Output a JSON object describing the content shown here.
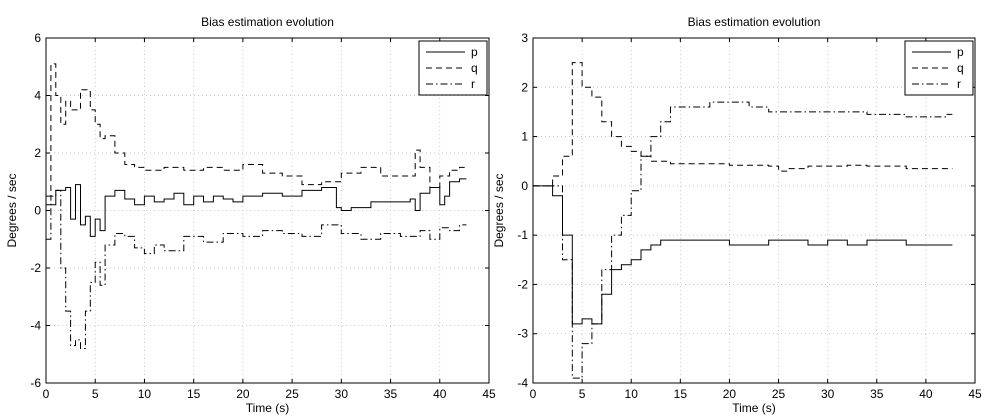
{
  "chart_data": [
    {
      "type": "line",
      "title": "Bias estimation evolution",
      "xlabel": "Time (s)",
      "ylabel": "Degrees / sec",
      "xlim": [
        0,
        45
      ],
      "ylim": [
        -6,
        6
      ],
      "xticks": [
        0,
        5,
        10,
        15,
        20,
        25,
        30,
        35,
        40,
        45
      ],
      "yticks": [
        -6,
        -4,
        -2,
        0,
        2,
        4,
        6
      ],
      "grid": true,
      "legend_position": "top-right",
      "series": [
        {
          "name": "p",
          "style": "solid",
          "x": [
            0,
            1,
            2,
            2.5,
            3,
            3.5,
            4,
            4.5,
            5,
            5.5,
            6,
            7,
            8,
            9,
            10,
            11,
            12,
            13,
            14,
            15,
            16,
            17,
            18,
            19,
            20,
            22,
            24,
            26,
            28,
            29.5,
            30,
            31,
            33,
            35,
            37,
            37.5,
            38,
            39,
            40,
            40.5,
            41,
            42,
            42.7
          ],
          "y": [
            0.2,
            0.7,
            0.8,
            -0.3,
            0.9,
            -0.5,
            -0.2,
            -0.9,
            -0.3,
            -0.7,
            0.5,
            0.7,
            0.4,
            0.2,
            0.5,
            0.3,
            0.4,
            0.6,
            0.2,
            0.5,
            0.3,
            0.5,
            0.4,
            0.3,
            0.5,
            0.6,
            0.5,
            0.7,
            0.8,
            0.1,
            0.0,
            0.1,
            0.3,
            0.3,
            0.4,
            0.0,
            0.6,
            0.8,
            0.2,
            0.5,
            1.0,
            1.1,
            1.1
          ]
        },
        {
          "name": "q",
          "style": "dashed",
          "x": [
            0,
            0.5,
            1,
            1.5,
            2,
            2.5,
            3,
            3.5,
            4,
            4.5,
            5,
            5.5,
            6,
            7,
            8,
            9,
            10,
            12,
            14,
            16,
            18,
            20,
            22,
            24,
            26,
            28,
            30,
            32,
            34,
            36,
            37.5,
            38,
            39,
            40,
            41,
            42,
            42.7
          ],
          "y": [
            0.5,
            5.1,
            4.0,
            3.0,
            3.8,
            3.5,
            3.5,
            4.2,
            4.2,
            3.5,
            3.0,
            2.5,
            2.6,
            2.0,
            1.6,
            1.5,
            1.4,
            1.5,
            1.4,
            1.5,
            1.4,
            1.6,
            1.3,
            1.2,
            0.9,
            1.0,
            1.3,
            1.5,
            1.2,
            1.2,
            2.1,
            1.5,
            0.8,
            1.2,
            1.4,
            1.5,
            1.5
          ]
        },
        {
          "name": "r",
          "style": "dashdot",
          "x": [
            0,
            0.5,
            1,
            1.5,
            2,
            2.5,
            3,
            3.5,
            4,
            4.5,
            5,
            5.5,
            6,
            7,
            8,
            9,
            10,
            11,
            12,
            14,
            16,
            18,
            20,
            22,
            24,
            26,
            28,
            30,
            32,
            34,
            36,
            38,
            39,
            40,
            41,
            42,
            42.7
          ],
          "y": [
            -1.0,
            0.5,
            0.7,
            -2.0,
            -3.5,
            -4.7,
            -4.5,
            -4.8,
            -3.5,
            -2.5,
            -1.8,
            -2.6,
            -1.2,
            -0.8,
            -0.9,
            -1.3,
            -1.5,
            -1.2,
            -1.4,
            -0.9,
            -1.1,
            -0.8,
            -0.9,
            -0.7,
            -0.8,
            -0.9,
            -0.5,
            -0.8,
            -1.0,
            -0.8,
            -0.9,
            -0.7,
            -1.0,
            -0.6,
            -0.7,
            -0.5,
            -0.5
          ]
        }
      ]
    },
    {
      "type": "line",
      "title": "Bias estimation evolution",
      "xlabel": "Time (s)",
      "ylabel": "Degrees / sec",
      "xlim": [
        0,
        45
      ],
      "ylim": [
        -4,
        3
      ],
      "xticks": [
        0,
        5,
        10,
        15,
        20,
        25,
        30,
        35,
        40,
        45
      ],
      "yticks": [
        -4,
        -3,
        -2,
        -1,
        0,
        1,
        2,
        3
      ],
      "grid": true,
      "legend_position": "top-right",
      "series": [
        {
          "name": "p",
          "style": "solid",
          "x": [
            0,
            1,
            2,
            3,
            4,
            5,
            6,
            7,
            8,
            9,
            10,
            11,
            12,
            13,
            14,
            16,
            18,
            20,
            22,
            24,
            26,
            28,
            30,
            32,
            34,
            36,
            38,
            40,
            42,
            42.7
          ],
          "y": [
            0.0,
            0.0,
            -0.2,
            -1.0,
            -2.8,
            -2.7,
            -2.8,
            -2.2,
            -1.7,
            -1.6,
            -1.5,
            -1.3,
            -1.2,
            -1.1,
            -1.1,
            -1.1,
            -1.1,
            -1.2,
            -1.2,
            -1.1,
            -1.1,
            -1.2,
            -1.1,
            -1.2,
            -1.1,
            -1.1,
            -1.2,
            -1.2,
            -1.2,
            -1.2
          ]
        },
        {
          "name": "q",
          "style": "dashed",
          "x": [
            0,
            1,
            2,
            3,
            4,
            5,
            6,
            7,
            8,
            9,
            10,
            11,
            12,
            14,
            16,
            18,
            20,
            22,
            24,
            25,
            26,
            28,
            30,
            32,
            34,
            36,
            38,
            40,
            42,
            42.7
          ],
          "y": [
            0.0,
            0.0,
            0.2,
            0.6,
            2.5,
            2.0,
            1.8,
            1.3,
            1.0,
            0.8,
            0.7,
            0.6,
            0.5,
            0.45,
            0.45,
            0.45,
            0.42,
            0.42,
            0.4,
            0.3,
            0.35,
            0.4,
            0.4,
            0.42,
            0.4,
            0.4,
            0.35,
            0.35,
            0.35,
            0.35
          ]
        },
        {
          "name": "r",
          "style": "dashdot",
          "x": [
            0,
            1,
            2,
            3,
            4,
            5,
            6,
            7,
            8,
            9,
            10,
            11,
            12,
            13,
            14,
            16,
            18,
            20,
            22,
            24,
            26,
            28,
            30,
            32,
            34,
            36,
            38,
            40,
            42,
            42.7
          ],
          "y": [
            0.0,
            0.0,
            0.0,
            -1.5,
            -3.9,
            -3.2,
            -2.8,
            -1.7,
            -1.0,
            -0.6,
            -0.1,
            0.6,
            1.0,
            1.3,
            1.6,
            1.6,
            1.7,
            1.7,
            1.6,
            1.5,
            1.5,
            1.5,
            1.5,
            1.5,
            1.45,
            1.45,
            1.4,
            1.4,
            1.45,
            1.45
          ]
        }
      ]
    }
  ]
}
